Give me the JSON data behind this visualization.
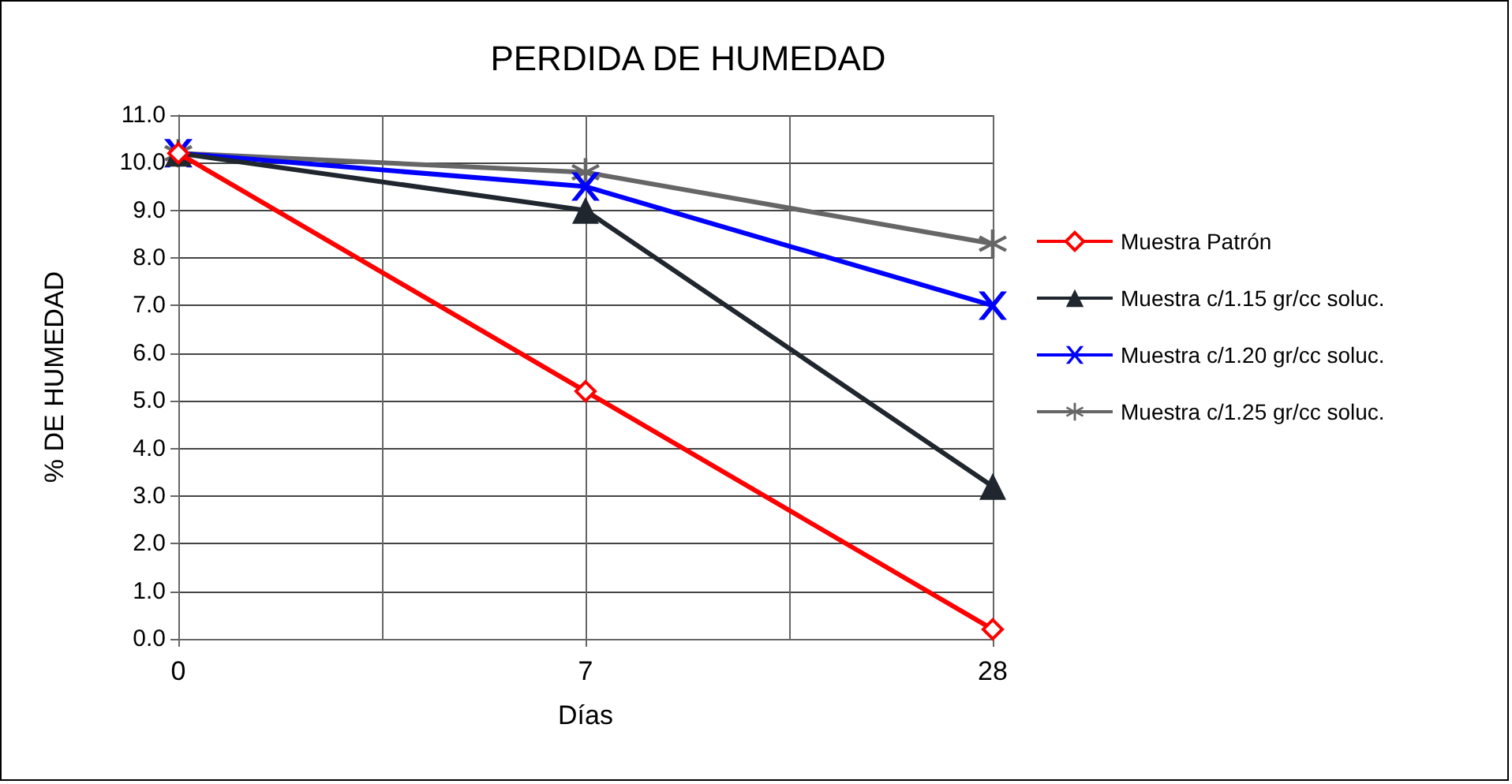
{
  "chart_data": {
    "type": "line",
    "title": "PERDIDA DE HUMEDAD",
    "xlabel": "Días",
    "ylabel": "% DE HUMEDAD",
    "categories": [
      "0",
      "7",
      "28"
    ],
    "ylim": [
      0,
      11
    ],
    "yticks": [
      {
        "value": 0,
        "label": "0.0"
      },
      {
        "value": 1,
        "label": "1.0"
      },
      {
        "value": 2,
        "label": "2.0"
      },
      {
        "value": 3,
        "label": "3.0"
      },
      {
        "value": 4,
        "label": "4.0"
      },
      {
        "value": 5,
        "label": "5.0"
      },
      {
        "value": 6,
        "label": "6.0"
      },
      {
        "value": 7,
        "label": "7.0"
      },
      {
        "value": 8,
        "label": "8.0"
      },
      {
        "value": 9,
        "label": "9.0"
      },
      {
        "value": 10,
        "label": "10.0"
      },
      {
        "value": 11,
        "label": "11.0"
      }
    ],
    "grid": true,
    "legend": "right",
    "series": [
      {
        "name": "Muestra Patrón",
        "color": "#ff0000",
        "marker": "diamond",
        "values": [
          10.2,
          5.2,
          0.2
        ]
      },
      {
        "name": "Muestra c/1.15 gr/cc soluc.",
        "color": "#1f262e",
        "marker": "triangle",
        "values": [
          10.2,
          9.0,
          3.2
        ]
      },
      {
        "name": "Muestra c/1.20 gr/cc soluc.",
        "color": "#0000ff",
        "marker": "cross",
        "values": [
          10.2,
          9.5,
          7.0
        ]
      },
      {
        "name": "Muestra c/1.25 gr/cc soluc.",
        "color": "#666666",
        "marker": "star",
        "values": [
          10.2,
          9.8,
          8.3
        ]
      }
    ]
  }
}
